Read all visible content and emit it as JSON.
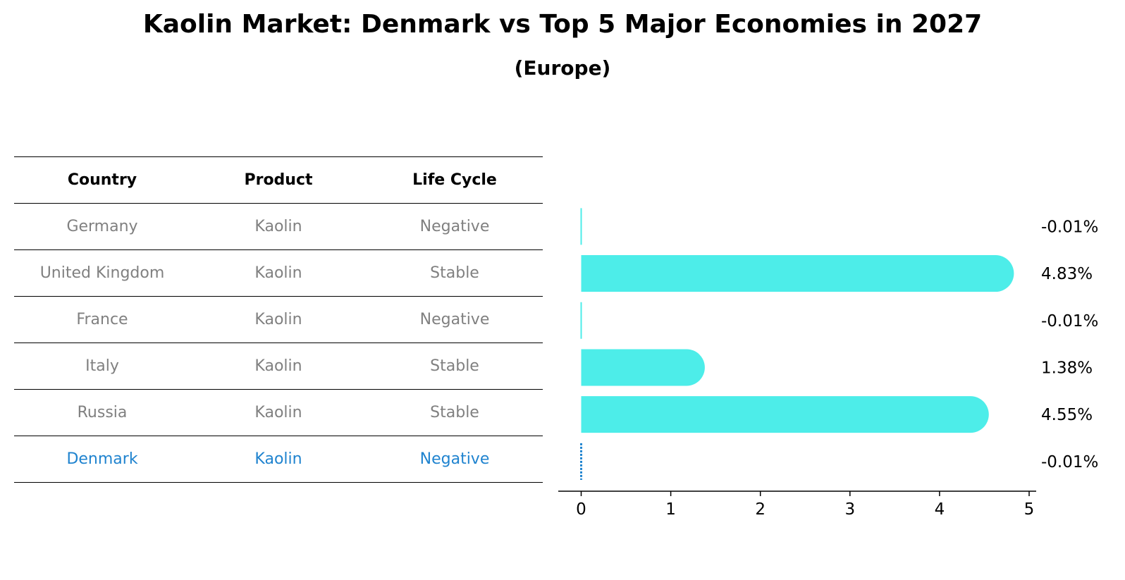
{
  "title": "Kaolin Market: Denmark vs Top 5 Major Economies in 2027",
  "subtitle": "(Europe)",
  "table": {
    "headers": [
      "Country",
      "Product",
      "Life Cycle"
    ],
    "rows": [
      {
        "country": "Germany",
        "product": "Kaolin",
        "life_cycle": "Negative"
      },
      {
        "country": "United Kingdom",
        "product": "Kaolin",
        "life_cycle": "Stable"
      },
      {
        "country": "France",
        "product": "Kaolin",
        "life_cycle": "Negative"
      },
      {
        "country": "Italy",
        "product": "Kaolin",
        "life_cycle": "Stable"
      },
      {
        "country": "Russia",
        "product": "Kaolin",
        "life_cycle": "Stable"
      },
      {
        "country": "Denmark",
        "product": "Kaolin",
        "life_cycle": "Negative"
      }
    ],
    "highlight_row": "Denmark"
  },
  "colors": {
    "bar": "#4dede9",
    "highlight": "#1f83cf",
    "muted_text": "#808080"
  },
  "chart_data": {
    "type": "bar",
    "orientation": "horizontal",
    "categories": [
      "Germany",
      "United Kingdom",
      "France",
      "Italy",
      "Russia",
      "Denmark"
    ],
    "values": [
      -0.01,
      4.83,
      -0.01,
      1.38,
      4.55,
      -0.01
    ],
    "value_labels": [
      "-0.01%",
      "4.83%",
      "-0.01%",
      "1.38%",
      "4.55%",
      "-0.01%"
    ],
    "xticks": [
      0,
      1,
      2,
      3,
      4,
      5
    ],
    "xlim": [
      -0.25,
      5.07
    ],
    "grid": false
  }
}
